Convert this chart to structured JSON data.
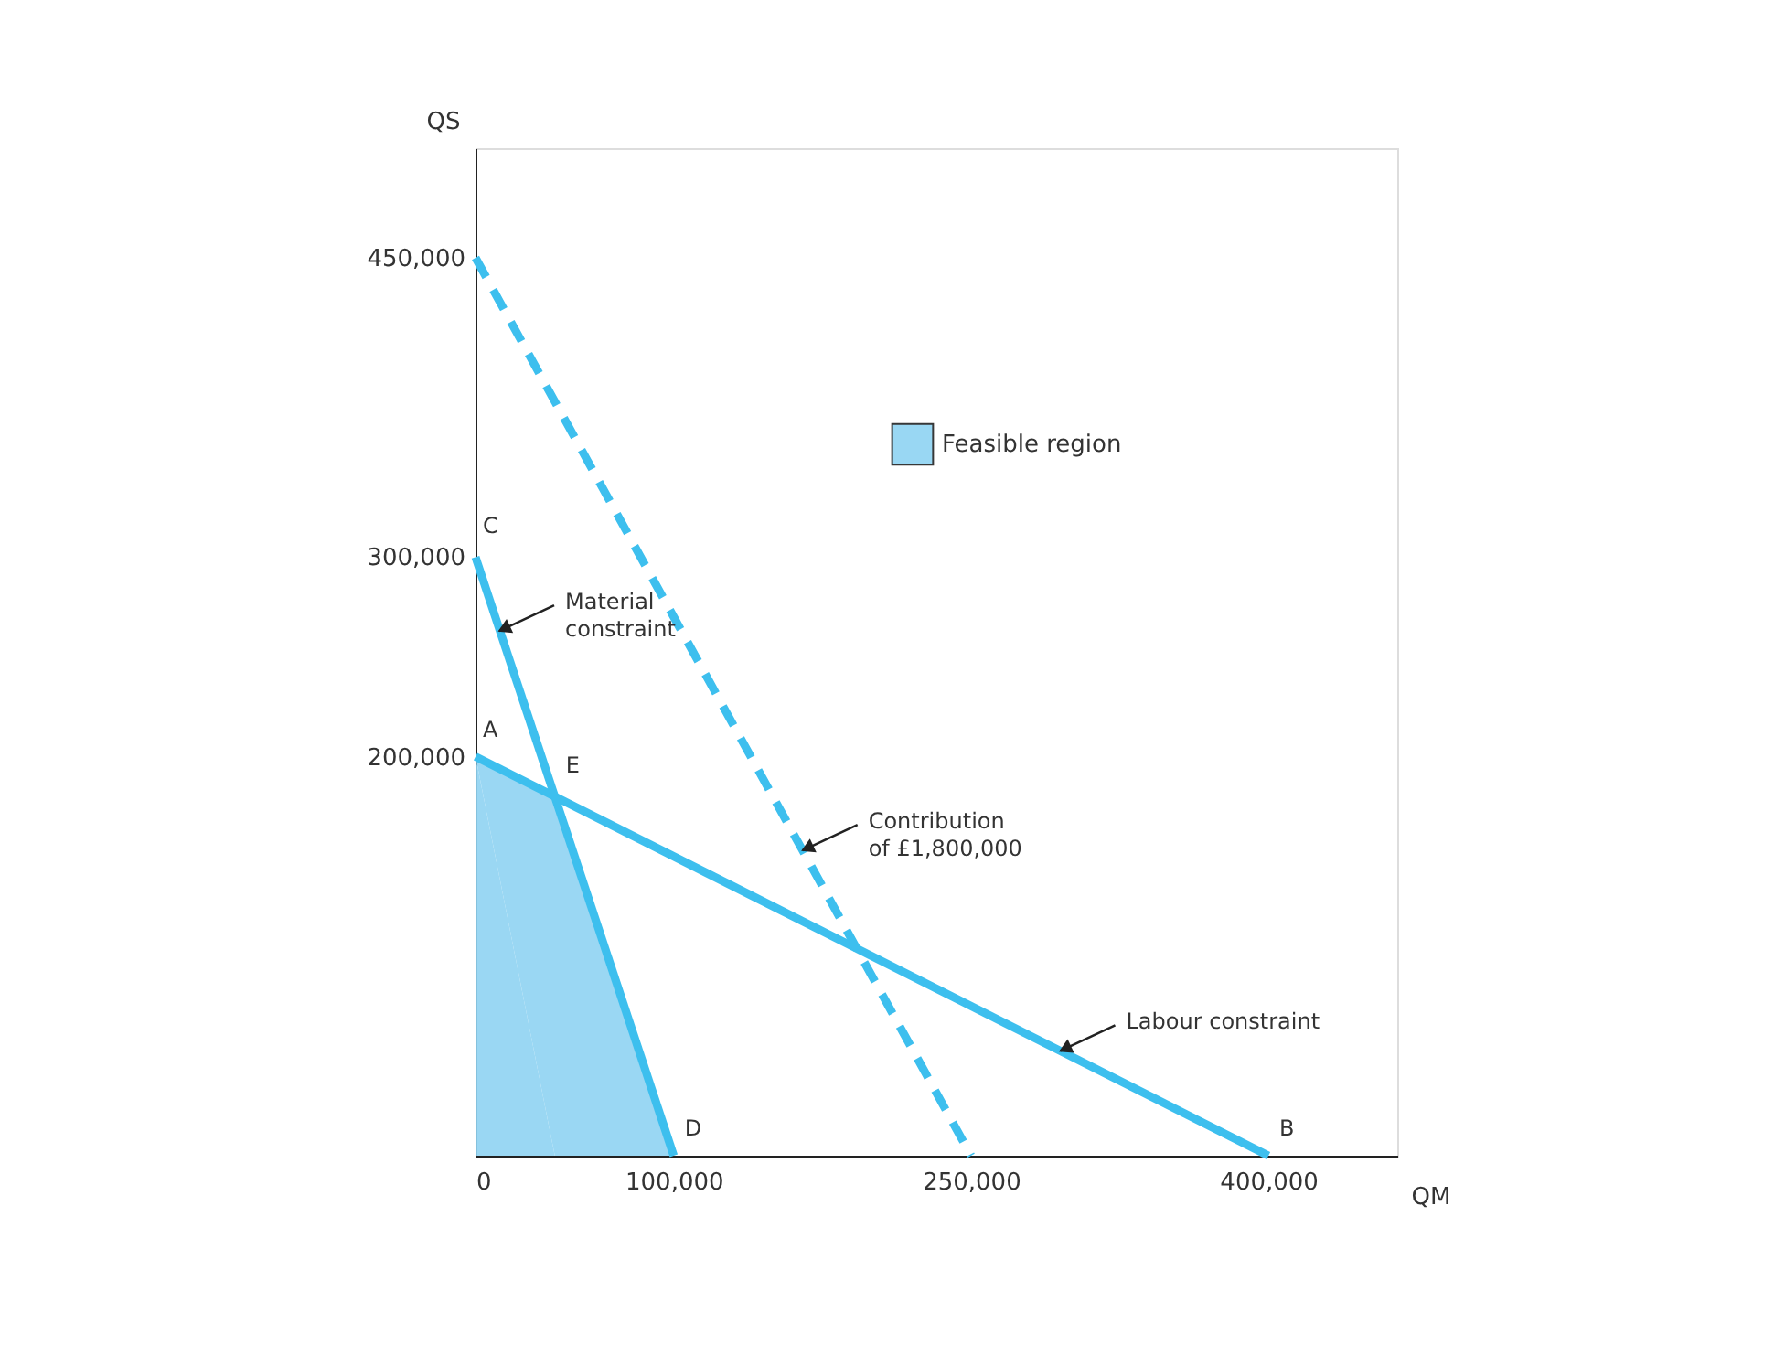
{
  "chart_data": {
    "type": "line",
    "xlabel": "QM",
    "ylabel": "QS",
    "xlim": [
      0,
      465000
    ],
    "ylim": [
      0,
      505000
    ],
    "xticks": [
      0,
      {
        "value": 100000,
        "label": "100,000"
      },
      {
        "value": 250000,
        "label": "250,000"
      },
      {
        "value": 400000,
        "label": "400,000"
      }
    ],
    "yticks": [
      {
        "value": 200000,
        "label": "200,000"
      },
      {
        "value": 300000,
        "label": "300,000"
      },
      {
        "value": 450000,
        "label": "450,000"
      }
    ],
    "grid": false,
    "legend": "top right",
    "marker": "none",
    "series": [
      {
        "name": "Feasible region",
        "type": "area",
        "color": "#8fd3f2",
        "x": [
          0,
          40000,
          100000
        ],
        "values": [
          200000,
          180000,
          0
        ]
      },
      {
        "color": "#3dbfee",
        "line_style": "solid",
        "x": [
          0,
          400000
        ],
        "values": [
          200000,
          0
        ]
      },
      {
        "color": "#3dbfee",
        "line_style": "solid",
        "x": [
          0,
          100000
        ],
        "values": [
          300000,
          0
        ]
      },
      {
        "color": "#3dbfee",
        "line_style": "dashed",
        "x": [
          0,
          250000
        ],
        "values": [
          450000,
          0
        ]
      }
    ],
    "annotations": [
      {
        "text": "A",
        "x": 0,
        "y": 200000
      },
      {
        "text": "B",
        "x": 400000,
        "y": 0
      },
      {
        "text": "C",
        "x": 0,
        "y": 300000
      },
      {
        "text": "D",
        "x": 100000,
        "y": 0
      },
      {
        "text": "E",
        "x": 40000,
        "y": 180000
      },
      {
        "text": "Material\nconstraint",
        "x": 12000,
        "y": 263000
      },
      {
        "text": "Contribution\nof £1,800,000",
        "x": 165000,
        "y": 153000
      },
      {
        "text": "Labour constraint",
        "x": 295000,
        "y": 52500
      }
    ]
  }
}
